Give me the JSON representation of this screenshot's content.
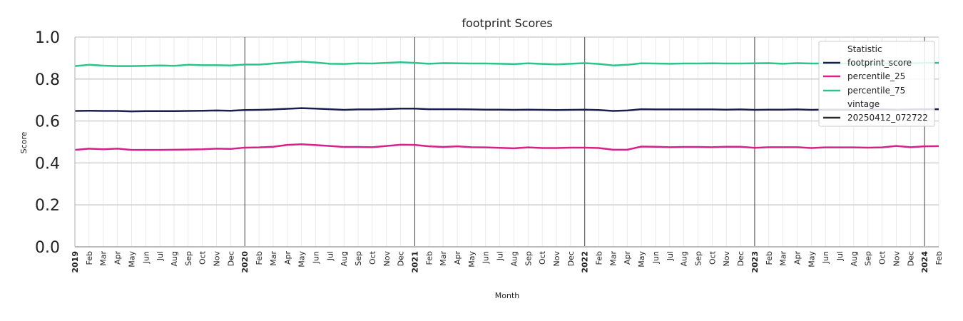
{
  "chart_data": {
    "type": "line",
    "title": "footprint Scores",
    "xlabel": "Month",
    "ylabel": "Score",
    "ylim": [
      0.0,
      1.0
    ],
    "yticks": [
      "0.0",
      "0.2",
      "0.4",
      "0.6",
      "0.8",
      "1.0"
    ],
    "x_tick_labels": [
      "2019",
      "Feb",
      "Mar",
      "Apr",
      "May",
      "Jun",
      "Jul",
      "Aug",
      "Sep",
      "Oct",
      "Nov",
      "Dec",
      "2020",
      "Feb",
      "Mar",
      "Apr",
      "May",
      "Jun",
      "Jul",
      "Aug",
      "Sep",
      "Oct",
      "Nov",
      "Dec",
      "2021",
      "Feb",
      "Mar",
      "Apr",
      "May",
      "Jun",
      "Jul",
      "Aug",
      "Sep",
      "Oct",
      "Nov",
      "Dec",
      "2022",
      "Feb",
      "Mar",
      "Apr",
      "May",
      "Jun",
      "Jul",
      "Aug",
      "Sep",
      "Oct",
      "Nov",
      "Dec",
      "2023",
      "Feb",
      "Mar",
      "Apr",
      "May",
      "Jun",
      "Jul",
      "Aug",
      "Sep",
      "Oct",
      "Nov",
      "Dec",
      "2024",
      "Feb"
    ],
    "year_tick_indices": [
      0,
      12,
      24,
      36,
      48,
      60
    ],
    "grid": true,
    "legend_placement": "top-right",
    "legend": {
      "title": "Statistic",
      "entries": [
        "footprint_score",
        "percentile_25",
        "percentile_75"
      ],
      "subtitle": "vintage",
      "vintage_entries": [
        "20250412_072722"
      ]
    },
    "series": [
      {
        "name": "footprint_score",
        "color": "#1a1f4e",
        "values": [
          0.648,
          0.649,
          0.648,
          0.648,
          0.646,
          0.647,
          0.647,
          0.647,
          0.648,
          0.649,
          0.65,
          0.649,
          0.652,
          0.653,
          0.655,
          0.658,
          0.661,
          0.659,
          0.656,
          0.653,
          0.655,
          0.655,
          0.657,
          0.659,
          0.659,
          0.656,
          0.656,
          0.656,
          0.655,
          0.654,
          0.654,
          0.653,
          0.654,
          0.653,
          0.652,
          0.653,
          0.654,
          0.652,
          0.648,
          0.65,
          0.656,
          0.655,
          0.655,
          0.655,
          0.655,
          0.655,
          0.654,
          0.655,
          0.653,
          0.654,
          0.654,
          0.655,
          0.653,
          0.654,
          0.654,
          0.654,
          0.654,
          0.655,
          0.654,
          0.655,
          0.656,
          0.656
        ]
      },
      {
        "name": "percentile_25",
        "color": "#d6218a",
        "values": [
          0.462,
          0.468,
          0.465,
          0.468,
          0.462,
          0.462,
          0.462,
          0.463,
          0.464,
          0.465,
          0.468,
          0.467,
          0.473,
          0.474,
          0.477,
          0.486,
          0.489,
          0.485,
          0.481,
          0.476,
          0.476,
          0.475,
          0.481,
          0.487,
          0.486,
          0.479,
          0.476,
          0.479,
          0.475,
          0.474,
          0.472,
          0.47,
          0.474,
          0.471,
          0.471,
          0.473,
          0.473,
          0.471,
          0.463,
          0.463,
          0.478,
          0.477,
          0.475,
          0.476,
          0.476,
          0.475,
          0.477,
          0.477,
          0.472,
          0.475,
          0.475,
          0.475,
          0.471,
          0.474,
          0.474,
          0.474,
          0.473,
          0.474,
          0.481,
          0.475,
          0.479,
          0.48
        ]
      },
      {
        "name": "percentile_75",
        "color": "#2bc48a",
        "values": [
          0.862,
          0.868,
          0.864,
          0.862,
          0.862,
          0.863,
          0.865,
          0.863,
          0.868,
          0.866,
          0.866,
          0.865,
          0.869,
          0.869,
          0.874,
          0.879,
          0.883,
          0.879,
          0.873,
          0.872,
          0.875,
          0.874,
          0.877,
          0.88,
          0.877,
          0.873,
          0.876,
          0.875,
          0.874,
          0.874,
          0.873,
          0.871,
          0.875,
          0.872,
          0.87,
          0.873,
          0.876,
          0.872,
          0.865,
          0.868,
          0.875,
          0.874,
          0.873,
          0.874,
          0.874,
          0.875,
          0.874,
          0.874,
          0.875,
          0.876,
          0.873,
          0.876,
          0.874,
          0.874,
          0.874,
          0.875,
          0.873,
          0.874,
          0.875,
          0.875,
          0.877,
          0.877
        ]
      }
    ],
    "vintage_line_color": "#2b2b2b"
  }
}
